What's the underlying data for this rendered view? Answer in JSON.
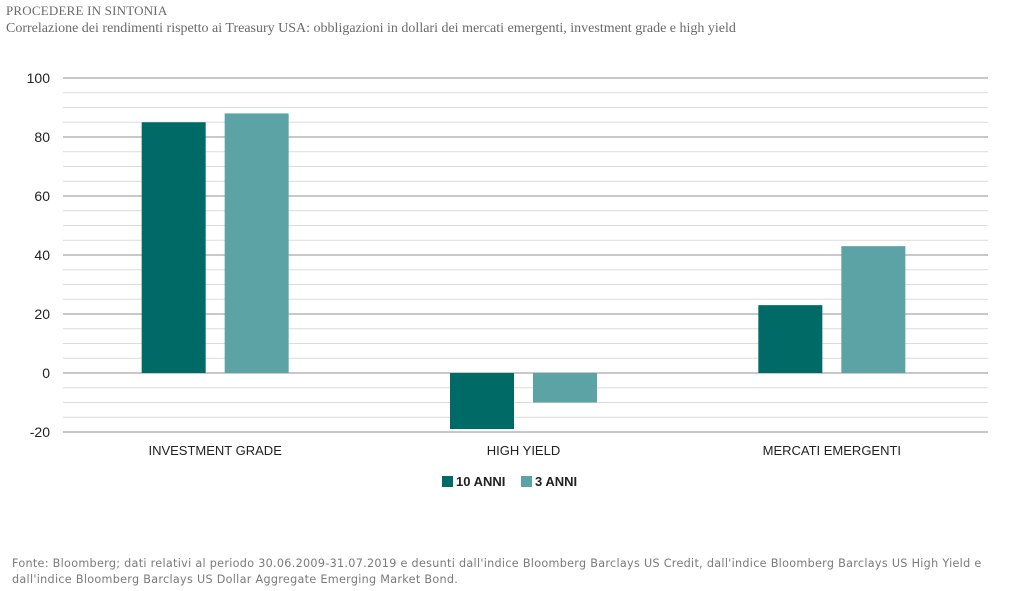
{
  "header": {
    "title": "PROCEDERE IN SINTONIA",
    "subtitle": "Correlazione dei rendimenti rispetto ai Treasury USA: obbligazioni in dollari dei mercati emergenti, investment grade e high yield"
  },
  "source_note": "Fonte: Bloomberg; dati relativi al periodo 30.06.2009-31.07.2019 e desunti dall'indice Bloomberg Barclays US Credit, dall'indice Bloomberg Barclays US High Yield e dall'indice Bloomberg Barclays US Dollar Aggregate Emerging Market Bond.",
  "chart_data": {
    "type": "bar",
    "categories": [
      "INVESTMENT GRADE",
      "HIGH YIELD",
      "MERCATI EMERGENTI"
    ],
    "series": [
      {
        "name": "10 ANNI",
        "values": [
          85,
          -19,
          23
        ],
        "color": "#006b66"
      },
      {
        "name": "3 ANNI",
        "values": [
          88,
          -10,
          43
        ],
        "color": "#5ba3a5"
      }
    ],
    "ylim": [
      -20,
      100
    ],
    "yticks": [
      -20,
      0,
      20,
      40,
      60,
      80,
      100
    ],
    "ytick_labels": [
      "-20",
      "0",
      "20",
      "40",
      "60",
      "80",
      "100"
    ],
    "minor_grid_step": 5,
    "grid": true,
    "legend": "bottom-center",
    "title": "",
    "xlabel": "",
    "ylabel": ""
  }
}
